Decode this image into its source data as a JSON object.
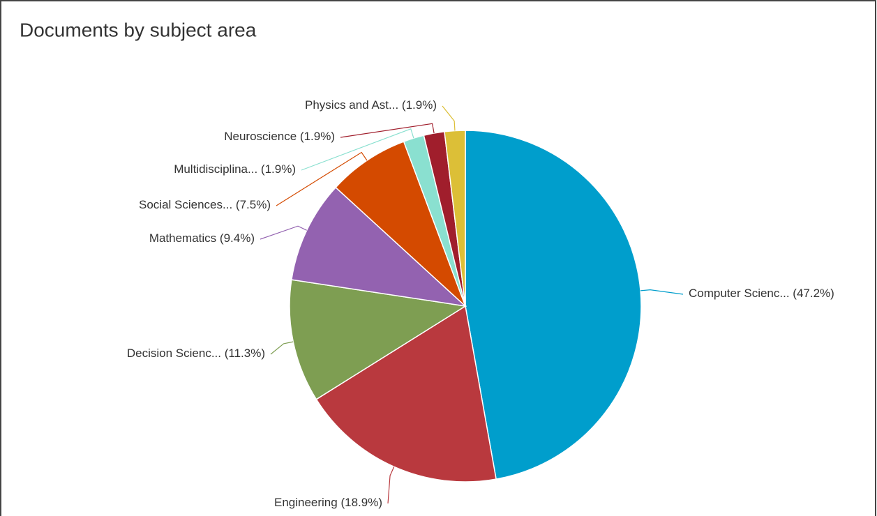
{
  "chart_data": {
    "type": "pie",
    "title": "Documents by subject area",
    "categories": [
      "Computer Scienc...",
      "Engineering",
      "Decision Scienc...",
      "Mathematics",
      "Social Sciences...",
      "Multidisciplina...",
      "Neuroscience",
      "Physics and Ast..."
    ],
    "values": [
      47.2,
      18.9,
      11.3,
      9.4,
      7.5,
      1.9,
      1.9,
      1.9
    ],
    "value_labels": [
      "(47.2%)",
      "(18.9%)",
      "(11.3%)",
      "(9.4%)",
      "(7.5%)",
      "(1.9%)",
      "(1.9%)",
      "(1.9%)"
    ],
    "colors": [
      "#009ecc",
      "#b9393e",
      "#7e9e52",
      "#9362b0",
      "#d44a00",
      "#8ae0d0",
      "#a01e2c",
      "#dcbf37"
    ]
  }
}
